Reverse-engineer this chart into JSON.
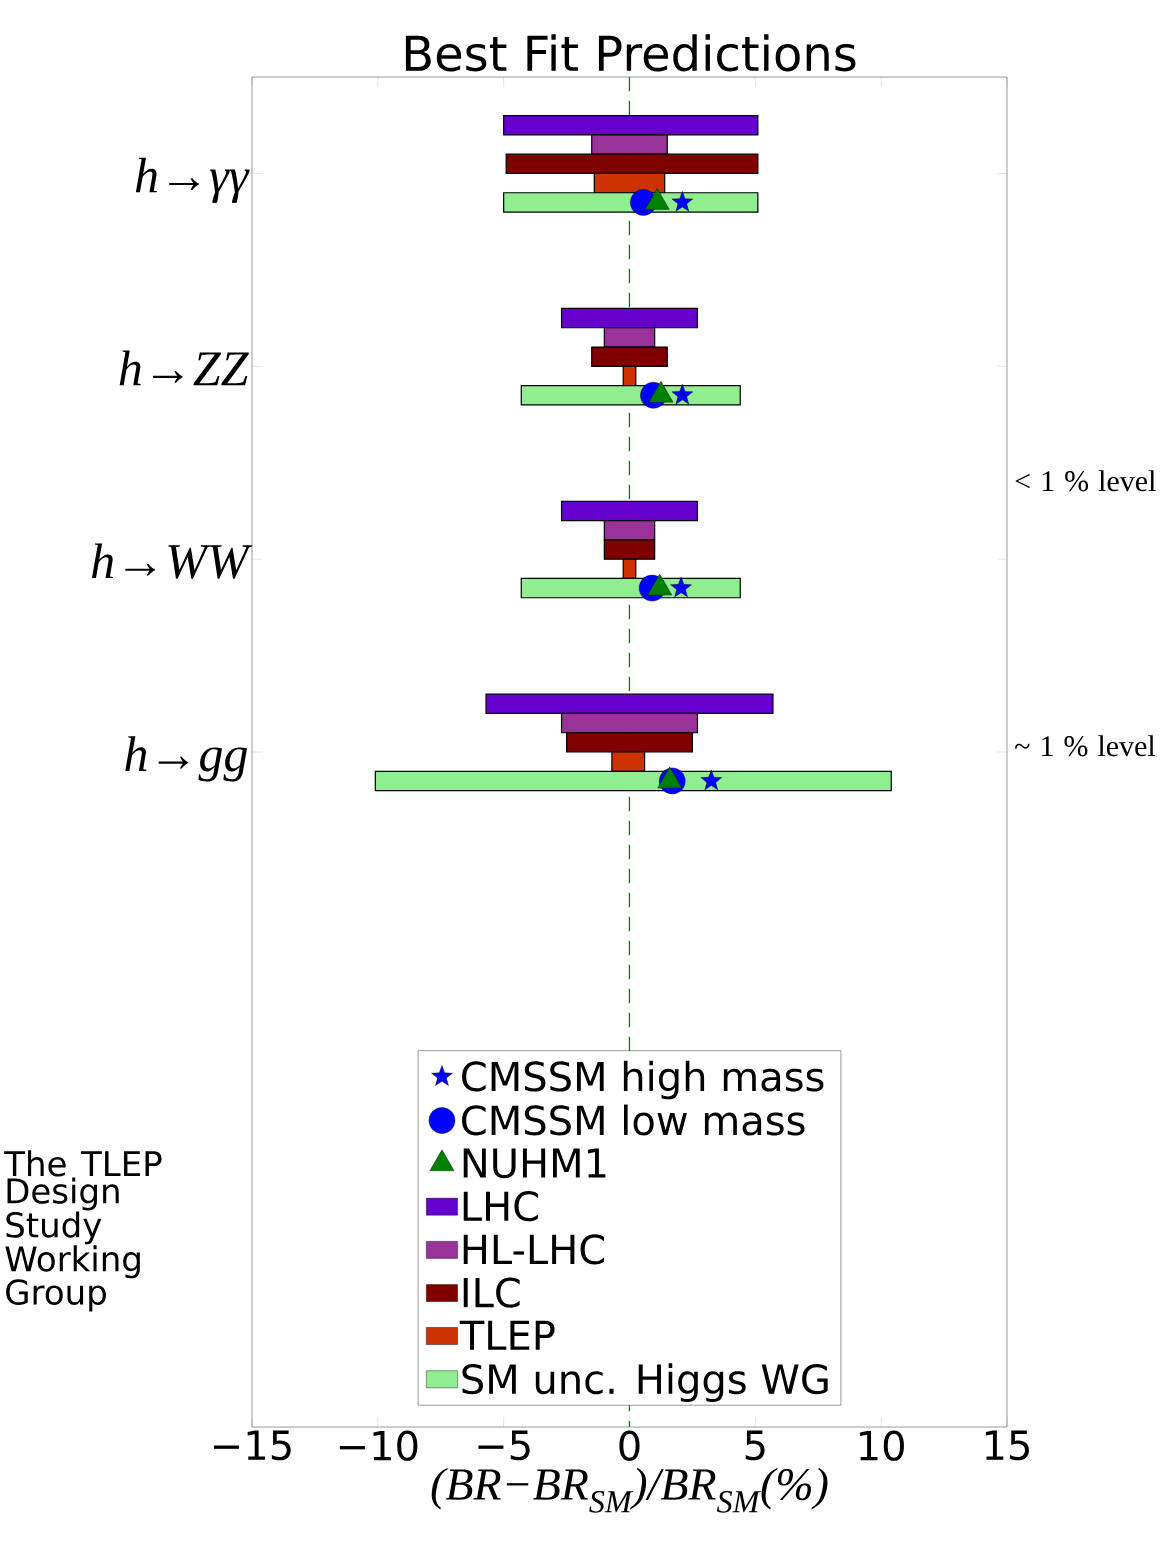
{
  "chart_data": {
    "type": "bar",
    "orientation": "horizontal",
    "title": "Best Fit Predictions",
    "xlabel": "(BR−BR$_{SM}$)/BR$_{SM}$(%)",
    "categories": [
      "h→γγ",
      "h→ZZ",
      "h→WW",
      "h→gg",
      null,
      null,
      null
    ],
    "xlim": [
      -15,
      15
    ],
    "xticks": [
      {
        "value": -15,
        "label": "−15"
      },
      {
        "value": -10,
        "label": "−10"
      },
      {
        "value": -5,
        "label": "−5"
      },
      0,
      5,
      10,
      15
    ],
    "grid": false,
    "legend": "bottom",
    "ref_lines": [
      {
        "axis": "x",
        "value": 0,
        "color": "#008000",
        "line_style": "dashed"
      }
    ],
    "annotations": [
      "< 1 % level",
      "~ 1 % level",
      "The TLEP Design Study Working Group"
    ],
    "series": [
      {
        "name": "CMSSM high mass",
        "type": "scatter",
        "marker": "star",
        "color": "#0000ff",
        "values": [
          2.1,
          2.1,
          2.05,
          3.25,
          null,
          null,
          null
        ]
      },
      {
        "name": "CMSSM low mass",
        "type": "scatter",
        "marker": "circle",
        "color": "#0000ff",
        "values": [
          0.55,
          0.95,
          0.9,
          1.7,
          null,
          null,
          null
        ]
      },
      {
        "name": "NUHM1",
        "type": "scatter",
        "marker": "triangle",
        "color": "#008000",
        "values": [
          1.1,
          1.25,
          1.2,
          1.6,
          null,
          null,
          null
        ]
      },
      {
        "name": "LHC",
        "color": "#6600cc",
        "base": [
          -5.0,
          -2.7,
          -2.7,
          -5.7,
          null,
          null,
          null
        ],
        "values": [
          10.1,
          5.4,
          5.4,
          11.4,
          null,
          null,
          null
        ]
      },
      {
        "name": "HL-LHC",
        "color": "#993399",
        "base": [
          -1.5,
          -1.0,
          -1.0,
          -2.7,
          null,
          null,
          null
        ],
        "values": [
          3.0,
          2.0,
          2.0,
          5.4,
          null,
          null,
          null
        ]
      },
      {
        "name": "ILC",
        "color": "#800000",
        "base": [
          -4.9,
          -1.5,
          -1.0,
          -2.5,
          null,
          null,
          null
        ],
        "values": [
          10.0,
          3.0,
          2.0,
          5.0,
          null,
          null,
          null
        ]
      },
      {
        "name": "TLEP",
        "color": "#cc3300",
        "base": [
          -1.4,
          -0.25,
          -0.25,
          -0.7,
          null,
          null,
          null
        ],
        "values": [
          2.8,
          0.5,
          0.5,
          1.3,
          null,
          null,
          null
        ]
      },
      {
        "name": "SM unc. Higgs WG",
        "color": "#90ee90",
        "base": [
          -5.0,
          -4.3,
          -4.3,
          -10.1,
          null,
          null,
          null
        ],
        "values": [
          10.1,
          8.7,
          8.7,
          20.5,
          null,
          null,
          null
        ]
      }
    ]
  }
}
